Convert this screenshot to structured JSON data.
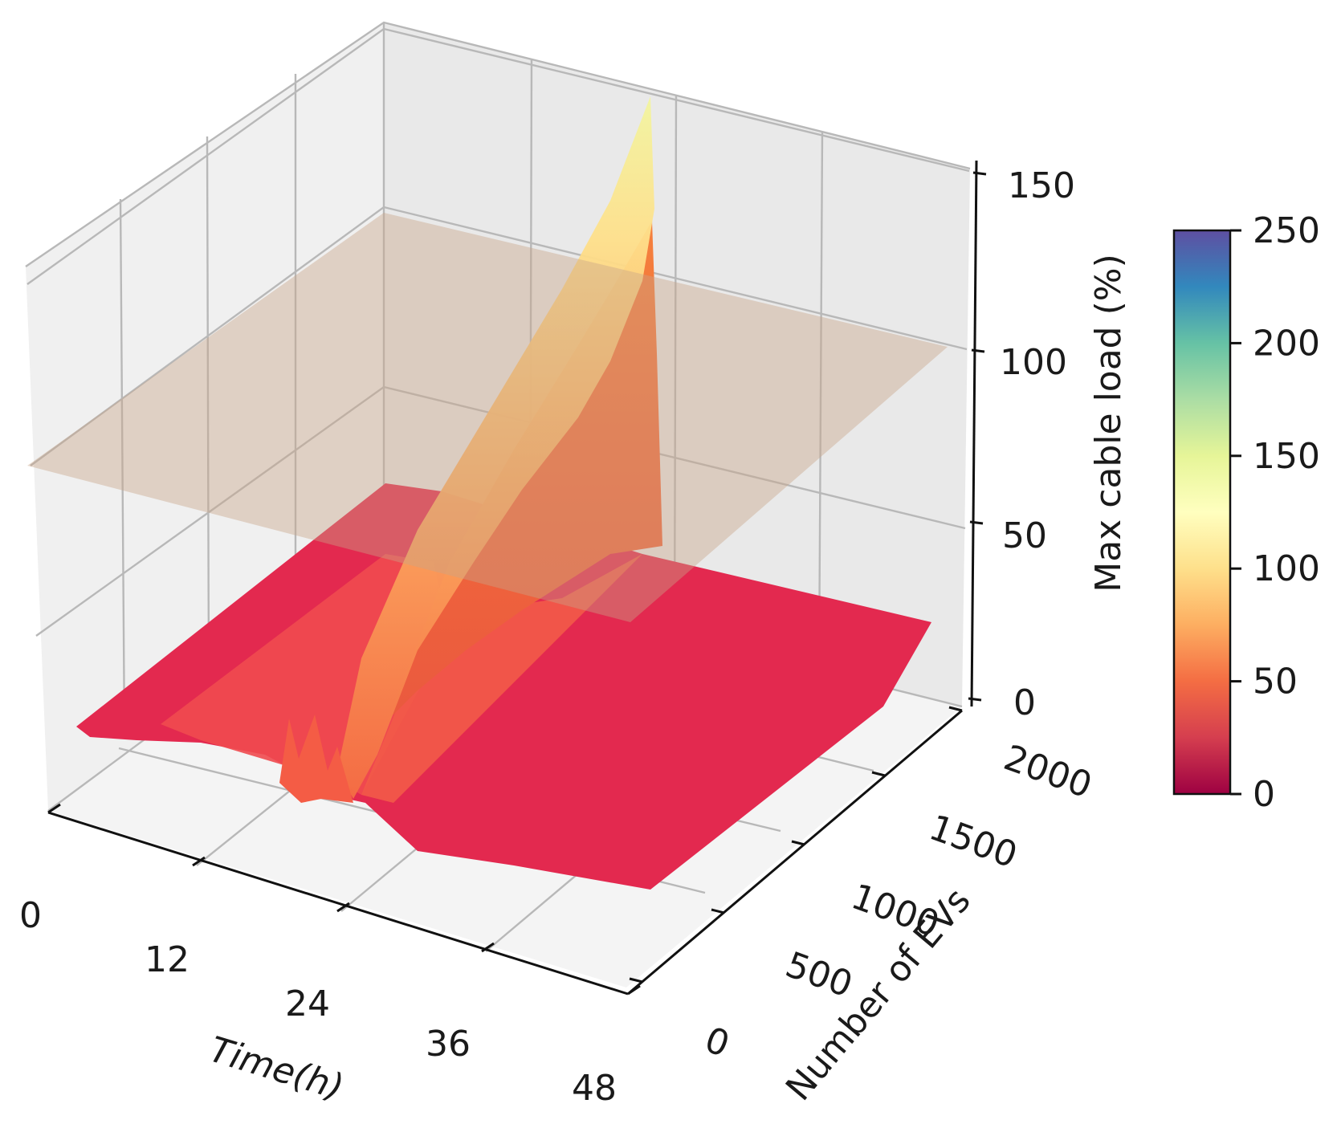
{
  "chart_data": {
    "type": "surface3d",
    "title": "",
    "xlabel": "Time(h)",
    "ylabel": "Number of EVs",
    "zlabel": "Max cable load (%)",
    "x_ticks": [
      "0",
      "12",
      "24",
      "36",
      "48"
    ],
    "y_ticks": [
      "0",
      "500",
      "1000",
      "1500",
      "2000"
    ],
    "z_ticks": [
      "0",
      "50",
      "100",
      "150"
    ],
    "xlim": [
      0,
      48
    ],
    "ylim": [
      0,
      2000
    ],
    "zlim": [
      0,
      150
    ],
    "colormap": "Spectral",
    "colorbar": {
      "label": "Max cable load (%)",
      "ticks": [
        "0",
        "50",
        "100",
        "150",
        "200",
        "250"
      ],
      "range": [
        0,
        250
      ],
      "stops": [
        "#9e0142",
        "#d53e4f",
        "#f46d43",
        "#fdae61",
        "#fee08b",
        "#ffffbf",
        "#e6f598",
        "#abdda4",
        "#66c2a5",
        "#3288bd",
        "#5e4fa2"
      ]
    },
    "threshold_plane": {
      "z": 100,
      "color": "#c8a488"
    },
    "surface_samples": {
      "time_h": [
        0,
        6,
        12,
        16,
        18,
        20,
        22,
        24,
        30,
        36,
        42,
        48
      ],
      "load_pct_at_2000_evs": [
        20,
        22,
        25,
        30,
        36,
        55,
        88,
        140,
        24,
        22,
        21,
        20
      ],
      "load_pct_at_0_evs": [
        10,
        10,
        10,
        10,
        10,
        10,
        10,
        10,
        10,
        10,
        10,
        10
      ]
    }
  }
}
